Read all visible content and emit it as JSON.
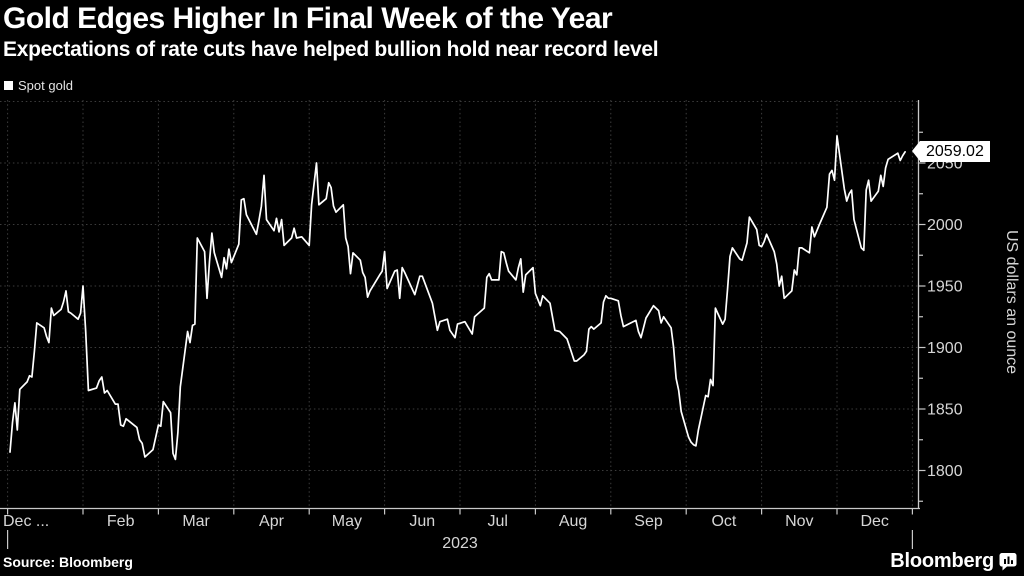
{
  "header": {
    "title": "Gold Edges Higher In Final Week of the Year",
    "subtitle": "Expectations of rate cuts have helped bullion hold near record level"
  },
  "legend": {
    "label": "Spot gold",
    "swatch_color": "#ffffff"
  },
  "chart_data": {
    "type": "line",
    "title": "Gold Edges Higher In Final Week of the Year",
    "ylabel": "US dollars an ounce",
    "xlabel": "2023",
    "grid": true,
    "legend_position": "top-left",
    "line_color": "#ffffff",
    "grid_color": "#3c3c3c",
    "axis_color": "#c8c8c8",
    "tick_label_color": "#d6d6d6",
    "ylim": [
      1770,
      2102
    ],
    "y_ticks": [
      1800,
      1850,
      1900,
      1950,
      2000,
      2050
    ],
    "y_minor_ticks": [
      1775,
      1825,
      1875,
      1925,
      1975,
      2025,
      2075
    ],
    "y_gridlines": [
      1800,
      1850,
      1900,
      1950,
      2000,
      2050,
      2100
    ],
    "x_tick_labels": [
      "Dec ...",
      "Feb",
      "Mar",
      "Apr",
      "May",
      "Jun",
      "Jul",
      "Aug",
      "Sep",
      "Oct",
      "Nov",
      "Dec"
    ],
    "x_axis_year": "2023",
    "last_value_label": "2059.02",
    "series": [
      {
        "name": "Spot gold",
        "color": "#ffffff",
        "points": [
          [
            "1-2",
            1815
          ],
          [
            "1-3",
            1839
          ],
          [
            "1-4",
            1855
          ],
          [
            "1-5",
            1833
          ],
          [
            "1-6",
            1866
          ],
          [
            "1-9",
            1872
          ],
          [
            "1-10",
            1877
          ],
          [
            "1-11",
            1876
          ],
          [
            "1-12",
            1897
          ],
          [
            "1-13",
            1920
          ],
          [
            "1-16",
            1916
          ],
          [
            "1-17",
            1909
          ],
          [
            "1-18",
            1904
          ],
          [
            "1-19",
            1932
          ],
          [
            "1-20",
            1926
          ],
          [
            "1-23",
            1931
          ],
          [
            "1-24",
            1937
          ],
          [
            "1-25",
            1946
          ],
          [
            "1-26",
            1929
          ],
          [
            "1-27",
            1928
          ],
          [
            "1-30",
            1923
          ],
          [
            "1-31",
            1928
          ],
          [
            "2-1",
            1950
          ],
          [
            "2-2",
            1913
          ],
          [
            "2-3",
            1865
          ],
          [
            "2-6",
            1867
          ],
          [
            "2-7",
            1873
          ],
          [
            "2-8",
            1876
          ],
          [
            "2-9",
            1863
          ],
          [
            "2-10",
            1865
          ],
          [
            "2-13",
            1854
          ],
          [
            "2-14",
            1854
          ],
          [
            "2-15",
            1837
          ],
          [
            "2-16",
            1836
          ],
          [
            "2-17",
            1842
          ],
          [
            "2-21",
            1835
          ],
          [
            "2-22",
            1825
          ],
          [
            "2-23",
            1822
          ],
          [
            "2-24",
            1811
          ],
          [
            "2-27",
            1817
          ],
          [
            "2-28",
            1827
          ],
          [
            "3-1",
            1837
          ],
          [
            "3-2",
            1836
          ],
          [
            "3-3",
            1856
          ],
          [
            "3-6",
            1847
          ],
          [
            "3-7",
            1814
          ],
          [
            "3-8",
            1809
          ],
          [
            "3-9",
            1831
          ],
          [
            "3-10",
            1868
          ],
          [
            "3-13",
            1913
          ],
          [
            "3-14",
            1904
          ],
          [
            "3-15",
            1918
          ],
          [
            "3-16",
            1919
          ],
          [
            "3-17",
            1989
          ],
          [
            "3-20",
            1978
          ],
          [
            "3-21",
            1940
          ],
          [
            "3-22",
            1970
          ],
          [
            "3-23",
            1993
          ],
          [
            "3-24",
            1977
          ],
          [
            "3-27",
            1957
          ],
          [
            "3-28",
            1973
          ],
          [
            "3-29",
            1964
          ],
          [
            "3-30",
            1980
          ],
          [
            "3-31",
            1969
          ],
          [
            "4-3",
            1984
          ],
          [
            "4-4",
            2020
          ],
          [
            "4-5",
            2021
          ],
          [
            "4-6",
            2008
          ],
          [
            "4-10",
            1992
          ],
          [
            "4-11",
            2003
          ],
          [
            "4-12",
            2015
          ],
          [
            "4-13",
            2040
          ],
          [
            "4-14",
            2004
          ],
          [
            "4-17",
            1995
          ],
          [
            "4-18",
            2005
          ],
          [
            "4-19",
            1994
          ],
          [
            "4-20",
            2004
          ],
          [
            "4-21",
            1983
          ],
          [
            "4-24",
            1989
          ],
          [
            "4-25",
            1997
          ],
          [
            "4-26",
            1989
          ],
          [
            "4-28",
            1990
          ],
          [
            "5-1",
            1983
          ],
          [
            "5-2",
            2016
          ],
          [
            "5-4",
            2050
          ],
          [
            "5-5",
            2016
          ],
          [
            "5-8",
            2021
          ],
          [
            "5-9",
            2034
          ],
          [
            "5-10",
            2030
          ],
          [
            "5-11",
            2015
          ],
          [
            "5-12",
            2010
          ],
          [
            "5-15",
            2016
          ],
          [
            "5-16",
            1989
          ],
          [
            "5-17",
            1982
          ],
          [
            "5-18",
            1960
          ],
          [
            "5-19",
            1977
          ],
          [
            "5-22",
            1971
          ],
          [
            "5-23",
            1961
          ],
          [
            "5-24",
            1957
          ],
          [
            "5-25",
            1941
          ],
          [
            "5-26",
            1946
          ],
          [
            "5-30",
            1959
          ],
          [
            "5-31",
            1962
          ],
          [
            "6-1",
            1978
          ],
          [
            "6-2",
            1948
          ],
          [
            "6-5",
            1962
          ],
          [
            "6-6",
            1963
          ],
          [
            "6-7",
            1940
          ],
          [
            "6-8",
            1965
          ],
          [
            "6-9",
            1961
          ],
          [
            "6-13",
            1943
          ],
          [
            "6-15",
            1958
          ],
          [
            "6-16",
            1958
          ],
          [
            "6-20",
            1936
          ],
          [
            "6-22",
            1914
          ],
          [
            "6-23",
            1921
          ],
          [
            "6-26",
            1923
          ],
          [
            "6-27",
            1914
          ],
          [
            "6-29",
            1908
          ],
          [
            "6-30",
            1919
          ],
          [
            "7-3",
            1921
          ],
          [
            "7-6",
            1911
          ],
          [
            "7-7",
            1925
          ],
          [
            "7-11",
            1932
          ],
          [
            "7-12",
            1957
          ],
          [
            "7-13",
            1960
          ],
          [
            "7-14",
            1955
          ],
          [
            "7-17",
            1955
          ],
          [
            "7-18",
            1978
          ],
          [
            "7-19",
            1977
          ],
          [
            "7-20",
            1969
          ],
          [
            "7-21",
            1962
          ],
          [
            "7-24",
            1955
          ],
          [
            "7-25",
            1965
          ],
          [
            "7-26",
            1972
          ],
          [
            "7-27",
            1945
          ],
          [
            "7-28",
            1959
          ],
          [
            "7-31",
            1965
          ],
          [
            "8-1",
            1944
          ],
          [
            "8-3",
            1934
          ],
          [
            "8-4",
            1942
          ],
          [
            "8-7",
            1936
          ],
          [
            "8-9",
            1914
          ],
          [
            "8-11",
            1913
          ],
          [
            "8-14",
            1907
          ],
          [
            "8-15",
            1901
          ],
          [
            "8-17",
            1889
          ],
          [
            "8-18",
            1889
          ],
          [
            "8-21",
            1894
          ],
          [
            "8-22",
            1897
          ],
          [
            "8-23",
            1915
          ],
          [
            "8-24",
            1917
          ],
          [
            "8-25",
            1915
          ],
          [
            "8-28",
            1920
          ],
          [
            "8-29",
            1937
          ],
          [
            "8-30",
            1942
          ],
          [
            "8-31",
            1940
          ],
          [
            "9-1",
            1940
          ],
          [
            "9-4",
            1938
          ],
          [
            "9-5",
            1926
          ],
          [
            "9-6",
            1917
          ],
          [
            "9-8",
            1919
          ],
          [
            "9-11",
            1922
          ],
          [
            "9-12",
            1913
          ],
          [
            "9-13",
            1908
          ],
          [
            "9-15",
            1924
          ],
          [
            "9-18",
            1934
          ],
          [
            "9-20",
            1930
          ],
          [
            "9-21",
            1920
          ],
          [
            "9-22",
            1925
          ],
          [
            "9-25",
            1916
          ],
          [
            "9-26",
            1900
          ],
          [
            "9-27",
            1875
          ],
          [
            "9-28",
            1865
          ],
          [
            "9-29",
            1848
          ],
          [
            "10-2",
            1827
          ],
          [
            "10-3",
            1823
          ],
          [
            "10-4",
            1821
          ],
          [
            "10-5",
            1820
          ],
          [
            "10-6",
            1833
          ],
          [
            "10-9",
            1861
          ],
          [
            "10-10",
            1860
          ],
          [
            "10-11",
            1874
          ],
          [
            "10-12",
            1869
          ],
          [
            "10-13",
            1932
          ],
          [
            "10-16",
            1919
          ],
          [
            "10-17",
            1923
          ],
          [
            "10-18",
            1947
          ],
          [
            "10-19",
            1974
          ],
          [
            "10-20",
            1981
          ],
          [
            "10-23",
            1972
          ],
          [
            "10-24",
            1971
          ],
          [
            "10-26",
            1985
          ],
          [
            "10-27",
            2006
          ],
          [
            "10-30",
            1996
          ],
          [
            "10-31",
            1983
          ],
          [
            "11-1",
            1982
          ],
          [
            "11-2",
            1986
          ],
          [
            "11-3",
            1992
          ],
          [
            "11-6",
            1978
          ],
          [
            "11-7",
            1968
          ],
          [
            "11-8",
            1950
          ],
          [
            "11-9",
            1958
          ],
          [
            "11-10",
            1940
          ],
          [
            "11-13",
            1946
          ],
          [
            "11-14",
            1963
          ],
          [
            "11-15",
            1959
          ],
          [
            "11-16",
            1981
          ],
          [
            "11-17",
            1981
          ],
          [
            "11-20",
            1977
          ],
          [
            "11-21",
            1998
          ],
          [
            "11-22",
            1990
          ],
          [
            "11-24",
            2000
          ],
          [
            "11-27",
            2014
          ],
          [
            "11-28",
            2041
          ],
          [
            "11-29",
            2044
          ],
          [
            "11-30",
            2036
          ],
          [
            "12-1",
            2072
          ],
          [
            "12-4",
            2029
          ],
          [
            "12-5",
            2019
          ],
          [
            "12-6",
            2025
          ],
          [
            "12-7",
            2028
          ],
          [
            "12-8",
            2004
          ],
          [
            "12-11",
            1981
          ],
          [
            "12-12",
            1979
          ],
          [
            "12-13",
            2028
          ],
          [
            "12-14",
            2036
          ],
          [
            "12-15",
            2019
          ],
          [
            "12-18",
            2027
          ],
          [
            "12-19",
            2040
          ],
          [
            "12-20",
            2031
          ],
          [
            "12-21",
            2046
          ],
          [
            "12-22",
            2053
          ],
          [
            "12-26",
            2058
          ],
          [
            "12-27",
            2052
          ],
          [
            "12-28",
            2056
          ],
          [
            "12-29",
            2059.02
          ]
        ]
      }
    ]
  },
  "footer": {
    "source": "Source: Bloomberg",
    "brand": "Bloomberg"
  }
}
